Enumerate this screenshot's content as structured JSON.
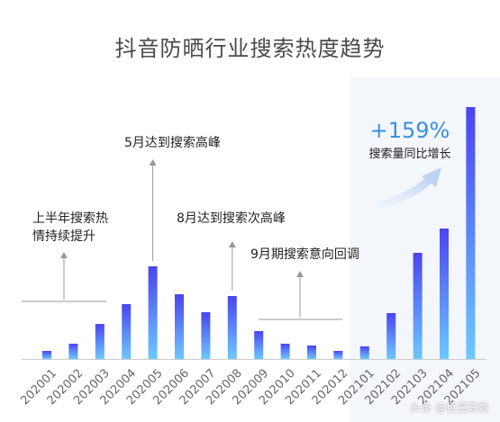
{
  "chart_data": {
    "type": "bar",
    "title": "抖音防晒行业搜索热度趋势",
    "categories": [
      "202001",
      "202002",
      "202003",
      "202004",
      "202005",
      "202006",
      "202007",
      "202008",
      "202009",
      "202010",
      "202011",
      "202012",
      "202101",
      "202102",
      "202103",
      "202104",
      "202105"
    ],
    "values": [
      9,
      17,
      39,
      61,
      103,
      72,
      52,
      70,
      31,
      17,
      15,
      9,
      14,
      51,
      118,
      145,
      280
    ],
    "ylim": [
      0,
      290
    ],
    "bar_gradient": [
      "#4A44F0",
      "#6EC8FF"
    ],
    "highlight_start_category": "202101",
    "highlight_bg": "#F3F6FB",
    "annotations": [
      {
        "text_lines": [
          "上半年搜索热",
          "情持续提升"
        ],
        "anchor": "202003"
      },
      {
        "text_lines": [
          "5月达到搜索高峰"
        ],
        "anchor": "202005"
      },
      {
        "text_lines": [
          "8月达到搜索次高峰"
        ],
        "anchor": "202008"
      },
      {
        "text_lines": [
          "9月期搜索意向回调"
        ],
        "anchor": "202011"
      }
    ],
    "growth_callout": {
      "value": "+159%",
      "label": "搜索量同比增长"
    }
  },
  "colors": {
    "title": "#4A4A4A",
    "annotation_text": "#222222",
    "arrow": "#999999",
    "axis_line": "#CCCCCC",
    "tick_label": "#666666",
    "growth_value": "#3B8FE0"
  },
  "watermark": "头条 @巨量算数"
}
